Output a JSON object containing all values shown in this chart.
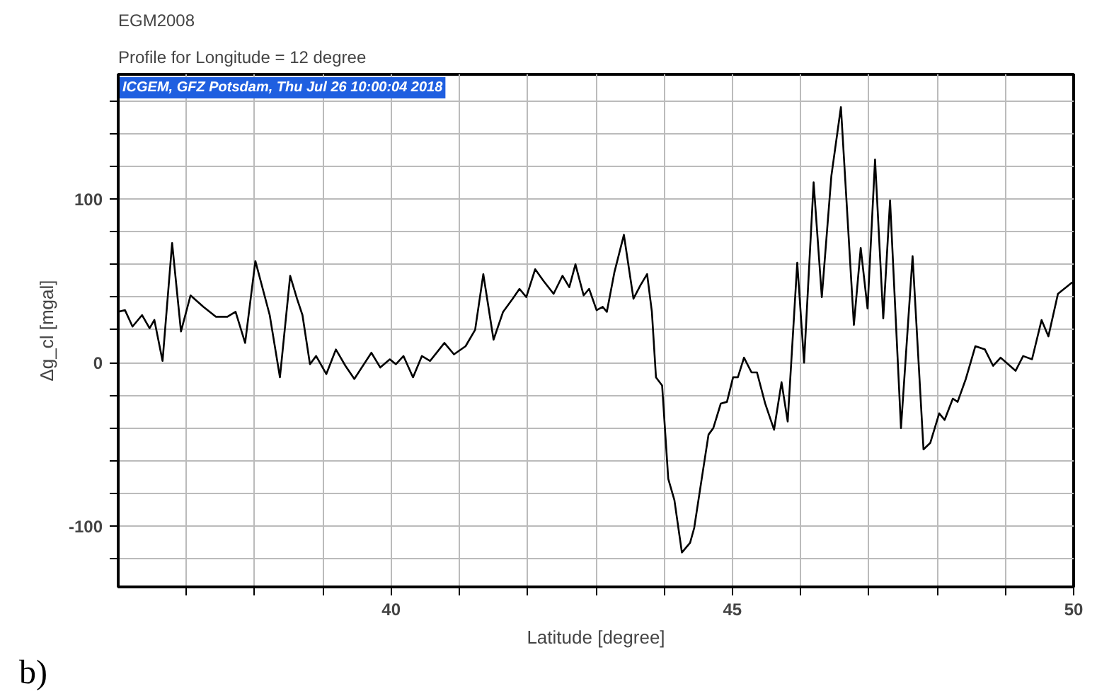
{
  "chart_data": {
    "type": "line",
    "title": "EGM2008",
    "subtitle": "Profile for Longitude = 12 degree",
    "xlabel": "Latitude [degree]",
    "ylabel": "Δg_cl [mgal]",
    "annotations": [
      "ICGEM, GFZ Potsdam, Thu Jul 26 10:00:04 2018",
      "b)"
    ],
    "xlim": [
      36,
      50
    ],
    "ylim": [
      -137,
      176
    ],
    "xticks": [
      {
        "value": 37,
        "label": null
      },
      {
        "value": 38,
        "label": null
      },
      {
        "value": 39,
        "label": null
      },
      40,
      {
        "value": 41,
        "label": null
      },
      {
        "value": 42,
        "label": null
      },
      {
        "value": 43,
        "label": null
      },
      {
        "value": 44,
        "label": null
      },
      45,
      {
        "value": 46,
        "label": null
      },
      {
        "value": 47,
        "label": null
      },
      {
        "value": 48,
        "label": null
      },
      {
        "value": 49,
        "label": null
      },
      50
    ],
    "yticks": [
      {
        "value": -120,
        "label": null
      },
      -100,
      {
        "value": -80,
        "label": null
      },
      {
        "value": -60,
        "label": null
      },
      {
        "value": -40,
        "label": null
      },
      {
        "value": -20,
        "label": null
      },
      0,
      {
        "value": 20,
        "label": null
      },
      {
        "value": 40,
        "label": null
      },
      {
        "value": 60,
        "label": null
      },
      {
        "value": 80,
        "label": null
      },
      100,
      {
        "value": 120,
        "label": null
      },
      {
        "value": 140,
        "label": null
      },
      {
        "value": 160,
        "label": null
      }
    ],
    "grid": true,
    "marker": "none",
    "line_style": "solid",
    "x": [
      36.0,
      36.1,
      36.21,
      36.35,
      36.46,
      36.53,
      36.65,
      36.79,
      36.92,
      37.06,
      37.25,
      37.43,
      37.6,
      37.72,
      37.86,
      38.01,
      38.22,
      38.37,
      38.52,
      38.62,
      38.7,
      38.81,
      38.9,
      39.05,
      39.19,
      39.33,
      39.46,
      39.71,
      39.84,
      39.98,
      40.07,
      40.18,
      40.32,
      40.45,
      40.57,
      40.78,
      40.92,
      41.09,
      41.23,
      41.35,
      41.5,
      41.64,
      41.78,
      41.88,
      41.98,
      42.11,
      42.23,
      42.38,
      42.51,
      42.61,
      42.7,
      42.82,
      42.9,
      43.01,
      43.1,
      43.16,
      43.27,
      43.41,
      43.55,
      43.65,
      43.75,
      43.82,
      43.88,
      43.97,
      44.06,
      44.15,
      44.26,
      44.38,
      44.44,
      44.55,
      44.65,
      44.72,
      44.83,
      44.92,
      45.01,
      45.08,
      45.17,
      45.28,
      45.36,
      45.48,
      45.61,
      45.72,
      45.81,
      45.95,
      46.05,
      46.19,
      46.31,
      46.45,
      46.59,
      46.78,
      46.88,
      46.98,
      47.09,
      47.21,
      47.31,
      47.47,
      47.64,
      47.8,
      47.9,
      48.03,
      48.11,
      48.23,
      48.3,
      48.42,
      48.56,
      48.7,
      48.82,
      48.93,
      49.15,
      49.26,
      49.39,
      49.53,
      49.63,
      49.77,
      49.98
    ],
    "series": [
      {
        "color": "#000000",
        "values": [
          31,
          32,
          22,
          29,
          21,
          26,
          1,
          73,
          19,
          41,
          34,
          28,
          28,
          31,
          12,
          62,
          29,
          -9,
          53,
          39,
          29,
          -1,
          4,
          -7,
          8,
          -2,
          -10,
          6,
          -3,
          2,
          -1,
          4,
          -9,
          4,
          1,
          12,
          5,
          10,
          20,
          54,
          14,
          31,
          39,
          45,
          40,
          57,
          50,
          42,
          53,
          46,
          60,
          41,
          45,
          32,
          34,
          31,
          55,
          78,
          39,
          47,
          54,
          31,
          -9,
          -14,
          -71,
          -84,
          -116,
          -110,
          -101,
          -71,
          -44,
          -40,
          -25,
          -24,
          -9,
          -9,
          3,
          -6,
          -6,
          -25,
          -41,
          -12,
          -36,
          61,
          0,
          110,
          40,
          114,
          156,
          23,
          70,
          33,
          124,
          27,
          99,
          -40,
          65,
          -53,
          -49,
          -31,
          -35,
          -22,
          -24,
          -10,
          10,
          8,
          -2,
          3,
          -5,
          4,
          2,
          26,
          16,
          42,
          49
        ]
      }
    ]
  }
}
